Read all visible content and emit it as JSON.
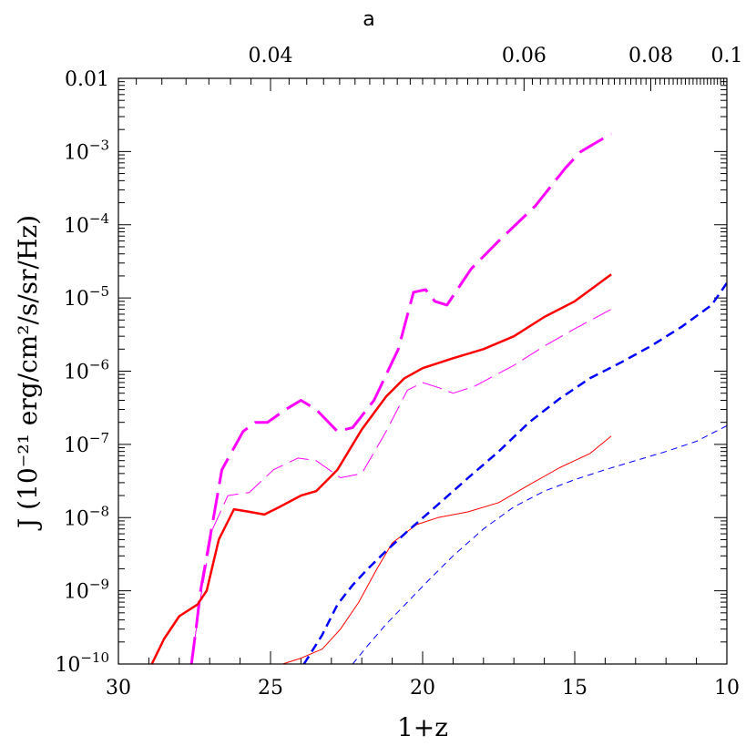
{
  "chart_data": {
    "type": "line",
    "title": "",
    "xlabel": "1+z",
    "ylabel": "J  (10⁻²¹ erg/cm²/s/sr/Hz)",
    "top_axis_label": "a",
    "xlim": [
      30,
      10
    ],
    "ylim": [
      1e-10,
      0.01
    ],
    "yscale": "log",
    "grid": false,
    "legend": "none",
    "x_ticks": [
      {
        "value": 30,
        "label": "30"
      },
      {
        "value": 25,
        "label": "25"
      },
      {
        "value": 20,
        "label": "20"
      },
      {
        "value": 15,
        "label": "15"
      },
      {
        "value": 10,
        "label": "10"
      }
    ],
    "top_ticks": [
      {
        "a": 0.04,
        "label": "0.04"
      },
      {
        "a": 0.06,
        "label": "0.06"
      },
      {
        "a": 0.08,
        "label": "0.08"
      },
      {
        "a": 0.1,
        "label": "0.1"
      }
    ],
    "y_ticks": [
      {
        "exp": -10,
        "mantissa": "10",
        "sup": "−10"
      },
      {
        "exp": -9,
        "mantissa": "10",
        "sup": "−9"
      },
      {
        "exp": -8,
        "mantissa": "10",
        "sup": "−8"
      },
      {
        "exp": -7,
        "mantissa": "10",
        "sup": "−7"
      },
      {
        "exp": -6,
        "mantissa": "10",
        "sup": "−6"
      },
      {
        "exp": -5,
        "mantissa": "10",
        "sup": "−5"
      },
      {
        "exp": -4,
        "mantissa": "10",
        "sup": "−4"
      },
      {
        "exp": -3,
        "mantissa": "10",
        "sup": "−3"
      },
      {
        "exp": -2,
        "mantissa": "0.01",
        "sup": ""
      }
    ],
    "series": [
      {
        "color": "#ff00ff",
        "width": 3,
        "dash": "30,10",
        "points": [
          [
            27.6,
            1e-10
          ],
          [
            27.45,
            3e-10
          ],
          [
            27.3,
            1e-09
          ],
          [
            27.0,
            5e-09
          ],
          [
            26.6,
            4.5e-08
          ],
          [
            25.9,
            1.5e-07
          ],
          [
            25.5,
            2e-07
          ],
          [
            25.1,
            2e-07
          ],
          [
            24.5,
            3e-07
          ],
          [
            24.0,
            4e-07
          ],
          [
            23.5,
            3e-07
          ],
          [
            22.8,
            1.5e-07
          ],
          [
            22.3,
            1.7e-07
          ],
          [
            21.6,
            4e-07
          ],
          [
            20.8,
            2e-06
          ],
          [
            20.3,
            1.2e-05
          ],
          [
            19.9,
            1.3e-05
          ],
          [
            19.6,
            9e-06
          ],
          [
            19.2,
            8e-06
          ],
          [
            18.4,
            2.5e-05
          ],
          [
            17.5,
            6e-05
          ],
          [
            16.3,
            0.00018
          ],
          [
            15.3,
            0.0006
          ],
          [
            14.8,
            0.001
          ],
          [
            13.8,
            0.00175
          ]
        ]
      },
      {
        "color": "#ff00ff",
        "width": 1,
        "dash": "22,8",
        "points": [
          [
            27.6,
            1e-10
          ],
          [
            27.3,
            8e-10
          ],
          [
            26.9,
            7e-09
          ],
          [
            26.4,
            2e-08
          ],
          [
            25.7,
            2.2e-08
          ],
          [
            24.9,
            4.5e-08
          ],
          [
            24.1,
            6.5e-08
          ],
          [
            23.5,
            6e-08
          ],
          [
            22.7,
            3.5e-08
          ],
          [
            22.0,
            4e-08
          ],
          [
            21.2,
            1.5e-07
          ],
          [
            20.5,
            5.5e-07
          ],
          [
            20.0,
            7e-07
          ],
          [
            19.5,
            6e-07
          ],
          [
            19.0,
            5e-07
          ],
          [
            18.3,
            6.2e-07
          ],
          [
            17.0,
            1.2e-06
          ],
          [
            16.0,
            2.2e-06
          ],
          [
            15.0,
            3.8e-06
          ],
          [
            13.8,
            7e-06
          ]
        ]
      },
      {
        "color": "#ff0000",
        "width": 2.5,
        "dash": "",
        "points": [
          [
            28.9,
            1e-10
          ],
          [
            28.5,
            2.2e-10
          ],
          [
            28.0,
            4.5e-10
          ],
          [
            27.4,
            6.5e-10
          ],
          [
            27.1,
            1e-09
          ],
          [
            26.7,
            5e-09
          ],
          [
            26.2,
            1.3e-08
          ],
          [
            25.7,
            1.2e-08
          ],
          [
            25.2,
            1.1e-08
          ],
          [
            24.7,
            1.4e-08
          ],
          [
            24.0,
            2e-08
          ],
          [
            23.5,
            2.3e-08
          ],
          [
            22.8,
            4.5e-08
          ],
          [
            22.0,
            1.6e-07
          ],
          [
            21.2,
            4.5e-07
          ],
          [
            20.6,
            8e-07
          ],
          [
            20.0,
            1.1e-06
          ],
          [
            19.0,
            1.5e-06
          ],
          [
            18.0,
            2e-06
          ],
          [
            17.0,
            3e-06
          ],
          [
            16.0,
            5.5e-06
          ],
          [
            15.0,
            9e-06
          ],
          [
            13.8,
            2.1e-05
          ]
        ]
      },
      {
        "color": "#ff0000",
        "width": 1,
        "dash": "",
        "points": [
          [
            24.6,
            1e-10
          ],
          [
            24.0,
            1.2e-10
          ],
          [
            23.3,
            1.6e-10
          ],
          [
            22.7,
            3e-10
          ],
          [
            22.1,
            7e-10
          ],
          [
            21.5,
            2e-09
          ],
          [
            21.0,
            4.5e-09
          ],
          [
            20.2,
            8e-09
          ],
          [
            19.5,
            1e-08
          ],
          [
            18.5,
            1.2e-08
          ],
          [
            17.5,
            1.6e-08
          ],
          [
            16.5,
            2.8e-08
          ],
          [
            15.5,
            4.8e-08
          ],
          [
            14.5,
            7.5e-08
          ],
          [
            13.8,
            1.3e-07
          ]
        ]
      },
      {
        "color": "#0000ff",
        "width": 2.5,
        "dash": "10,6",
        "points": [
          [
            23.9,
            1e-10
          ],
          [
            23.3,
            2.5e-10
          ],
          [
            22.8,
            6.5e-10
          ],
          [
            22.3,
            1.2e-09
          ],
          [
            21.8,
            2e-09
          ],
          [
            21.2,
            3.5e-09
          ],
          [
            20.5,
            6.5e-09
          ],
          [
            19.5,
            1.5e-08
          ],
          [
            18.5,
            3.5e-08
          ],
          [
            17.5,
            8e-08
          ],
          [
            16.5,
            2e-07
          ],
          [
            15.5,
            4.2e-07
          ],
          [
            14.5,
            8e-07
          ],
          [
            13.5,
            1.3e-06
          ],
          [
            12.5,
            2.2e-06
          ],
          [
            11.5,
            4e-06
          ],
          [
            10.5,
            8e-06
          ],
          [
            10.0,
            1.6e-05
          ]
        ]
      },
      {
        "color": "#0000ff",
        "width": 1,
        "dash": "7,5",
        "points": [
          [
            22.3,
            1e-10
          ],
          [
            21.8,
            1.8e-10
          ],
          [
            21.2,
            3.5e-10
          ],
          [
            20.5,
            7e-10
          ],
          [
            19.8,
            1.4e-09
          ],
          [
            19.0,
            3e-09
          ],
          [
            18.0,
            7e-09
          ],
          [
            17.0,
            1.4e-08
          ],
          [
            16.0,
            2.3e-08
          ],
          [
            15.0,
            3.3e-08
          ],
          [
            14.0,
            4.5e-08
          ],
          [
            13.0,
            6e-08
          ],
          [
            12.0,
            8e-08
          ],
          [
            11.0,
            1.1e-07
          ],
          [
            10.0,
            1.8e-07
          ]
        ]
      }
    ]
  }
}
